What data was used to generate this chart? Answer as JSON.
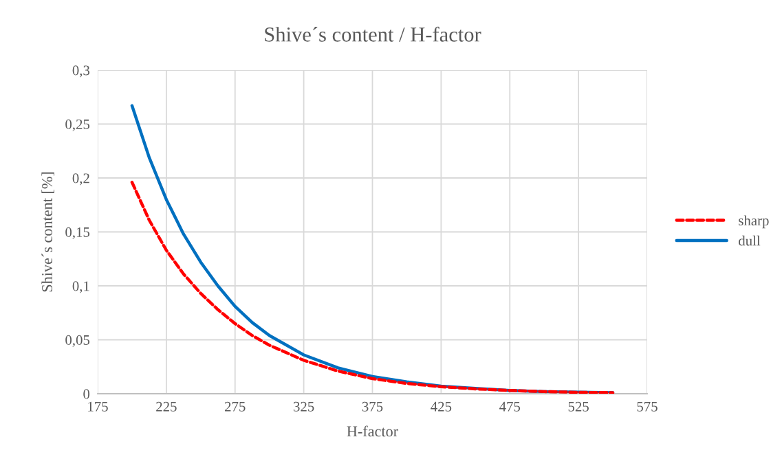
{
  "chart_data": {
    "type": "line",
    "title": "Shive´s content / H-factor",
    "xlabel": "H-factor",
    "ylabel": "Shive´s content [%]",
    "x": [
      200,
      212.5,
      225,
      237.5,
      250,
      262.5,
      275,
      287.5,
      300,
      325,
      350,
      375,
      400,
      425,
      450,
      475,
      500,
      525,
      550
    ],
    "series": [
      {
        "name": "sharp",
        "color": "#ff0000",
        "line_style": "dashed",
        "values": [
          0.196,
          0.161,
          0.133,
          0.111,
          0.093,
          0.078,
          0.065,
          0.054,
          0.045,
          0.031,
          0.021,
          0.014,
          0.0095,
          0.0065,
          0.0045,
          0.003,
          0.002,
          0.0013,
          0.001
        ]
      },
      {
        "name": "dull",
        "color": "#0070c0",
        "line_style": "solid",
        "values": [
          0.267,
          0.219,
          0.18,
          0.148,
          0.122,
          0.1,
          0.081,
          0.066,
          0.054,
          0.036,
          0.024,
          0.016,
          0.011,
          0.007,
          0.005,
          0.003,
          0.002,
          0.0015,
          0.001
        ]
      }
    ],
    "xlim": [
      175,
      575
    ],
    "xticks": [
      175,
      225,
      275,
      325,
      375,
      425,
      475,
      525,
      575
    ],
    "ylim": [
      0,
      0.3
    ],
    "yticks": [
      {
        "value": 0,
        "label": "0"
      },
      {
        "value": 0.05,
        "label": "0,05"
      },
      {
        "value": 0.1,
        "label": "0,1"
      },
      {
        "value": 0.15,
        "label": "0,15"
      },
      {
        "value": 0.2,
        "label": "0,2"
      },
      {
        "value": 0.25,
        "label": "0,25"
      },
      {
        "value": 0.3,
        "label": "0,3"
      }
    ],
    "grid": true,
    "legend": "right",
    "marker": "none"
  }
}
